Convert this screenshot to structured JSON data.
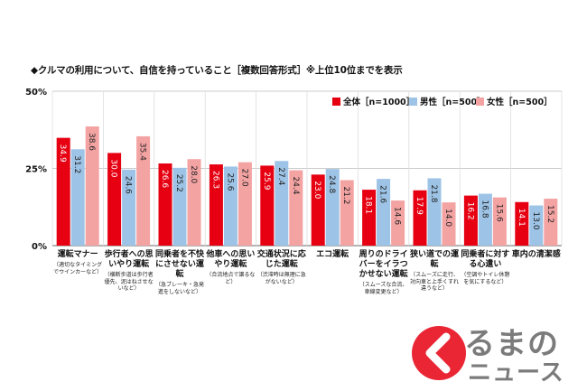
{
  "chart_data": {
    "type": "bar",
    "title": "◆クルマの利用について、自信を持っていること［複数回答形式］※上位10位までを表示",
    "ylim": [
      0,
      50
    ],
    "yticks": [
      0,
      25,
      50
    ],
    "ytick_labels": [
      "0%",
      "25%",
      "50%"
    ],
    "categories": [
      {
        "label": "運転マナー",
        "sub": "（適切なタイミングでウインカーなど）"
      },
      {
        "label": "歩行者への思いやり運転",
        "sub": "（横断歩道は歩行者優先、泥はねさせないなど）"
      },
      {
        "label": "同乗者を不快にさせない運転",
        "sub": "（急ブレーキ・急発進をしないなど）"
      },
      {
        "label": "他車への思いやり運転",
        "sub": "（合流地点で譲るなど）"
      },
      {
        "label": "交通状況に応じた運転",
        "sub": "（渋滞時は無理に急がないなど）"
      },
      {
        "label": "エコ運転",
        "sub": ""
      },
      {
        "label": "周りのドライバーをイラつかせない運転",
        "sub": "（スムーズな合流、車線変更など）"
      },
      {
        "label": "狭い道での運転",
        "sub": "（スムーズに走行、対向車と上手くすれ違うなど）"
      },
      {
        "label": "同乗者に対する心遣い",
        "sub": "（空調やトイレ休憩を気にするなど）"
      },
      {
        "label": "車内の清潔感",
        "sub": ""
      }
    ],
    "series": [
      {
        "name": "全体［n=1000］",
        "color": "#e60012",
        "values": [
          34.9,
          30.0,
          26.6,
          26.3,
          25.9,
          23.0,
          18.1,
          17.9,
          16.2,
          14.1
        ]
      },
      {
        "name": "男性［n=500］",
        "color": "#9dc3e6",
        "values": [
          31.2,
          24.6,
          25.2,
          25.6,
          27.4,
          24.8,
          21.6,
          21.8,
          16.8,
          13.0
        ]
      },
      {
        "name": "女性［n=500］",
        "color": "#f4a3a3",
        "values": [
          38.6,
          35.4,
          28.0,
          27.0,
          24.4,
          21.2,
          14.6,
          14.0,
          15.6,
          15.2
        ]
      }
    ],
    "legend_position": "top-right"
  },
  "logo": {
    "line1": "るまの",
    "line2": "ニュース",
    "accent": "#e60012",
    "gray": "#7b7b7b"
  }
}
